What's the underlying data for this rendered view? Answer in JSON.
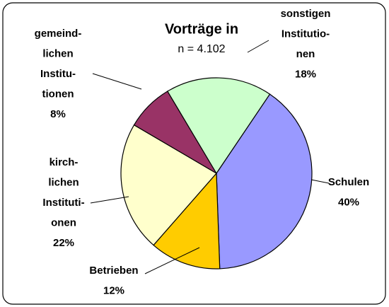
{
  "chart_data": {
    "type": "pie",
    "title": "Vorträge in",
    "subtitle": "n = 4.102",
    "categories": [
      [
        "Schulen"
      ],
      [
        "Betrieben"
      ],
      [
        "kirch-",
        "lichen",
        "Instituti-",
        "onen"
      ],
      [
        "gemeind-",
        "lichen",
        "Institu-",
        "tionen"
      ],
      [
        "sonstigen",
        "Institutio-",
        "nen"
      ]
    ],
    "values": [
      40,
      12,
      22,
      8,
      18
    ],
    "value_labels": [
      "40%",
      "12%",
      "22%",
      "8%",
      "18%"
    ],
    "colors": [
      "#9999ff",
      "#ffcc00",
      "#ffffcc",
      "#993366",
      "#ccffcc"
    ]
  }
}
